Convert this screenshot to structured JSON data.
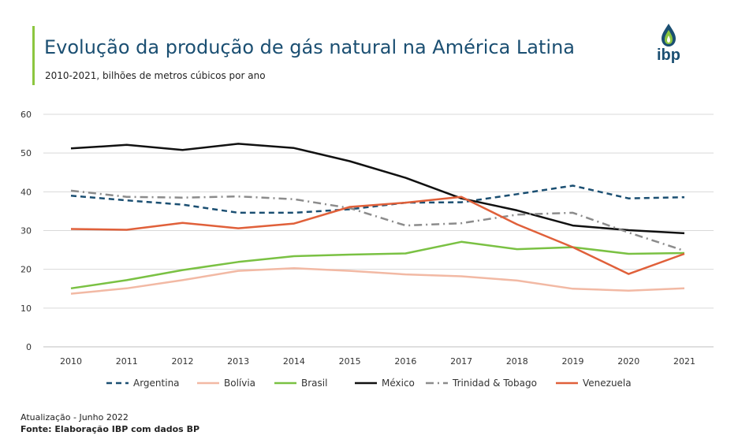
{
  "header": {
    "title": "Evolução da produção de gás natural na América Latina",
    "subtitle": "2010-2021, bilhões de metros cúbicos por ano",
    "logo_text": "ibp",
    "logo_icon": "flame-drop-icon",
    "colors": {
      "title": "#1b4f72",
      "accent_bar": "#8cc63f"
    }
  },
  "footer": {
    "update": "Atualização - Junho 2022",
    "source": "Fonte: Elaboração IBP com dados BP"
  },
  "chart_data": {
    "type": "line",
    "title": "Evolução da produção de gás natural na América Latina",
    "subtitle": "2010-2021, bilhões de metros cúbicos por ano",
    "xlabel": "",
    "ylabel": "",
    "ylim": [
      0,
      60
    ],
    "yticks": [
      0,
      10,
      20,
      30,
      40,
      50,
      60
    ],
    "grid": true,
    "legend_position": "bottom",
    "categories": [
      "2010",
      "2011",
      "2012",
      "2013",
      "2014",
      "2015",
      "2016",
      "2017",
      "2018",
      "2019",
      "2020",
      "2021"
    ],
    "series": [
      {
        "name": "Argentina",
        "color": "#1b4f72",
        "dash": "dashed",
        "values": [
          39.0,
          37.8,
          36.7,
          34.6,
          34.6,
          35.5,
          37.2,
          37.3,
          39.4,
          41.6,
          38.3,
          38.6
        ]
      },
      {
        "name": "Bolívia",
        "color": "#f2b9a4",
        "dash": "solid",
        "values": [
          13.7,
          15.1,
          17.2,
          19.6,
          20.3,
          19.6,
          18.7,
          18.2,
          17.1,
          15.0,
          14.5,
          15.1
        ]
      },
      {
        "name": "Brasil",
        "color": "#7ac143",
        "dash": "solid",
        "values": [
          15.1,
          17.2,
          19.8,
          21.9,
          23.4,
          23.8,
          24.1,
          27.1,
          25.2,
          25.7,
          24.0,
          24.2
        ]
      },
      {
        "name": "México",
        "color": "#111111",
        "dash": "solid",
        "values": [
          51.2,
          52.1,
          50.8,
          52.4,
          51.3,
          47.9,
          43.6,
          38.3,
          35.2,
          31.3,
          30.1,
          29.3
        ]
      },
      {
        "name": "Trinidad & Tobago",
        "color": "#8c8c8c",
        "dash": "dashdot",
        "values": [
          40.3,
          38.7,
          38.5,
          38.8,
          38.1,
          35.8,
          31.3,
          31.9,
          34.1,
          34.6,
          29.5,
          24.8
        ]
      },
      {
        "name": "Venezuela",
        "color": "#e0603a",
        "dash": "solid",
        "values": [
          30.4,
          30.2,
          32.0,
          30.6,
          31.8,
          36.1,
          37.2,
          38.7,
          31.6,
          25.7,
          18.8,
          24.0
        ]
      }
    ]
  }
}
